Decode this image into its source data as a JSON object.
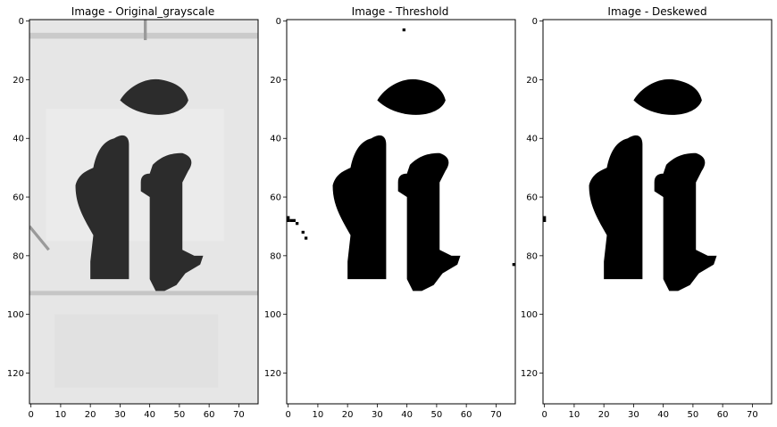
{
  "chart_data": [
    {
      "type": "image",
      "title": "Image - Original_grayscale",
      "colormap": "gray",
      "xlim": [
        -0.5,
        76.5
      ],
      "ylim": [
        130.5,
        -0.5
      ],
      "xticks": [
        0,
        10,
        20,
        30,
        40,
        50,
        60,
        70
      ],
      "yticks": [
        0,
        20,
        40,
        60,
        80,
        100,
        120
      ],
      "background": "#e6e6e6",
      "ink_color": "#2c2c2c"
    },
    {
      "type": "image",
      "title": "Image - Threshold",
      "colormap": "binary",
      "xlim": [
        -0.5,
        76.5
      ],
      "ylim": [
        130.5,
        -0.5
      ],
      "xticks": [
        0,
        10,
        20,
        30,
        40,
        50,
        60,
        70
      ],
      "yticks": [
        0,
        20,
        40,
        60,
        80,
        100,
        120
      ],
      "background": "#ffffff",
      "ink_color": "#000000"
    },
    {
      "type": "image",
      "title": "Image - Deskewed",
      "colormap": "binary",
      "xlim": [
        -0.5,
        76.5
      ],
      "ylim": [
        130.5,
        -0.5
      ],
      "xticks": [
        0,
        10,
        20,
        30,
        40,
        50,
        60,
        70
      ],
      "yticks": [
        0,
        20,
        40,
        60,
        80,
        100,
        120
      ],
      "background": "#ffffff",
      "ink_color": "#000000"
    }
  ]
}
